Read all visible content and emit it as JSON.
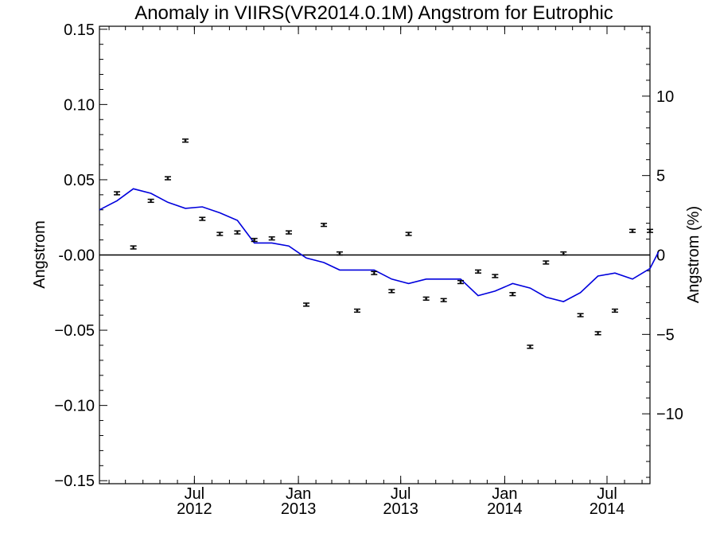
{
  "chart_data": {
    "type": "scatter",
    "title": "Anomaly in VIIRS(VR2014.0.1M) Angstrom for Eutrophic",
    "ylabel_left": "Angstrom",
    "ylabel_right": "Angstrom (%)",
    "xlabel": "",
    "xlim": [
      "2012-01-15",
      "2014-09-15"
    ],
    "ylim_left": [
      -0.152,
      0.152
    ],
    "ylim_right": [
      -14.4,
      14.4
    ],
    "grid": false,
    "left_ticks": [
      {
        "value": 0.15,
        "label": "0.15"
      },
      {
        "value": 0.1,
        "label": "0.10"
      },
      {
        "value": 0.05,
        "label": "0.05"
      },
      {
        "value": 0.0,
        "label": "-0.00"
      },
      {
        "value": -0.05,
        "label": "−0.05"
      },
      {
        "value": -0.1,
        "label": "−0.10"
      },
      {
        "value": -0.15,
        "label": "−0.15"
      }
    ],
    "right_ticks": [
      {
        "value": 10,
        "label": "10"
      },
      {
        "value": 5,
        "label": "5"
      },
      {
        "value": 0,
        "label": "0"
      },
      {
        "value": -5,
        "label": "−5"
      },
      {
        "value": -10,
        "label": "−10"
      }
    ],
    "x_ticks": [
      {
        "date": "2012-07-01",
        "label_month": "Jul",
        "label_year": "2012"
      },
      {
        "date": "2013-01-01",
        "label_month": "Jan",
        "label_year": "2013"
      },
      {
        "date": "2013-07-01",
        "label_month": "Jul",
        "label_year": "2013"
      },
      {
        "date": "2014-01-01",
        "label_month": "Jan",
        "label_year": "2014"
      },
      {
        "date": "2014-07-01",
        "label_month": "Jul",
        "label_year": "2014"
      }
    ],
    "zero_line": true,
    "series": [
      {
        "type": "scatter_errorbar",
        "color": "#000000",
        "error": 0.001,
        "points": [
          {
            "x": "2012-02-15",
            "y": 0.041
          },
          {
            "x": "2012-03-15",
            "y": 0.005
          },
          {
            "x": "2012-04-15",
            "y": 0.036
          },
          {
            "x": "2012-05-15",
            "y": 0.051
          },
          {
            "x": "2012-06-15",
            "y": 0.076
          },
          {
            "x": "2012-07-15",
            "y": 0.024
          },
          {
            "x": "2012-08-15",
            "y": 0.014
          },
          {
            "x": "2012-09-15",
            "y": 0.015
          },
          {
            "x": "2012-10-15",
            "y": 0.01
          },
          {
            "x": "2012-11-15",
            "y": 0.011
          },
          {
            "x": "2012-12-15",
            "y": 0.015
          },
          {
            "x": "2013-01-15",
            "y": -0.033
          },
          {
            "x": "2013-02-15",
            "y": 0.02
          },
          {
            "x": "2013-03-15",
            "y": 0.001
          },
          {
            "x": "2013-04-15",
            "y": -0.037
          },
          {
            "x": "2013-05-15",
            "y": -0.012
          },
          {
            "x": "2013-06-15",
            "y": -0.024
          },
          {
            "x": "2013-07-15",
            "y": 0.014
          },
          {
            "x": "2013-08-15",
            "y": -0.029
          },
          {
            "x": "2013-09-15",
            "y": -0.03
          },
          {
            "x": "2013-10-15",
            "y": -0.018
          },
          {
            "x": "2013-11-15",
            "y": -0.011
          },
          {
            "x": "2013-12-15",
            "y": -0.014
          },
          {
            "x": "2014-01-15",
            "y": -0.026
          },
          {
            "x": "2014-02-15",
            "y": -0.061
          },
          {
            "x": "2014-03-15",
            "y": -0.005
          },
          {
            "x": "2014-04-15",
            "y": 0.001
          },
          {
            "x": "2014-05-15",
            "y": -0.04
          },
          {
            "x": "2014-06-15",
            "y": -0.052
          },
          {
            "x": "2014-07-15",
            "y": -0.037
          },
          {
            "x": "2014-08-15",
            "y": 0.016
          },
          {
            "x": "2014-09-15",
            "y": 0.016
          }
        ]
      },
      {
        "type": "line",
        "color": "#0000dd",
        "points": [
          {
            "x": "2012-01-15",
            "y": 0.03
          },
          {
            "x": "2012-02-15",
            "y": 0.036
          },
          {
            "x": "2012-03-15",
            "y": 0.044
          },
          {
            "x": "2012-04-15",
            "y": 0.041
          },
          {
            "x": "2012-05-15",
            "y": 0.035
          },
          {
            "x": "2012-06-15",
            "y": 0.031
          },
          {
            "x": "2012-07-15",
            "y": 0.032
          },
          {
            "x": "2012-08-15",
            "y": 0.028
          },
          {
            "x": "2012-09-15",
            "y": 0.023
          },
          {
            "x": "2012-10-15",
            "y": 0.008
          },
          {
            "x": "2012-11-15",
            "y": 0.008
          },
          {
            "x": "2012-12-15",
            "y": 0.006
          },
          {
            "x": "2013-01-15",
            "y": -0.002
          },
          {
            "x": "2013-02-15",
            "y": -0.005
          },
          {
            "x": "2013-03-15",
            "y": -0.01
          },
          {
            "x": "2013-04-15",
            "y": -0.01
          },
          {
            "x": "2013-05-15",
            "y": -0.01
          },
          {
            "x": "2013-06-15",
            "y": -0.016
          },
          {
            "x": "2013-07-15",
            "y": -0.019
          },
          {
            "x": "2013-08-15",
            "y": -0.016
          },
          {
            "x": "2013-09-15",
            "y": -0.016
          },
          {
            "x": "2013-10-15",
            "y": -0.016
          },
          {
            "x": "2013-11-15",
            "y": -0.027
          },
          {
            "x": "2013-12-15",
            "y": -0.024
          },
          {
            "x": "2014-01-15",
            "y": -0.019
          },
          {
            "x": "2014-02-15",
            "y": -0.022
          },
          {
            "x": "2014-03-15",
            "y": -0.028
          },
          {
            "x": "2014-04-15",
            "y": -0.031
          },
          {
            "x": "2014-05-15",
            "y": -0.025
          },
          {
            "x": "2014-06-15",
            "y": -0.014
          },
          {
            "x": "2014-07-15",
            "y": -0.012
          },
          {
            "x": "2014-08-15",
            "y": -0.016
          },
          {
            "x": "2014-09-15",
            "y": -0.009
          },
          {
            "x": "2014-09-30",
            "y": 0.002
          }
        ]
      }
    ]
  }
}
